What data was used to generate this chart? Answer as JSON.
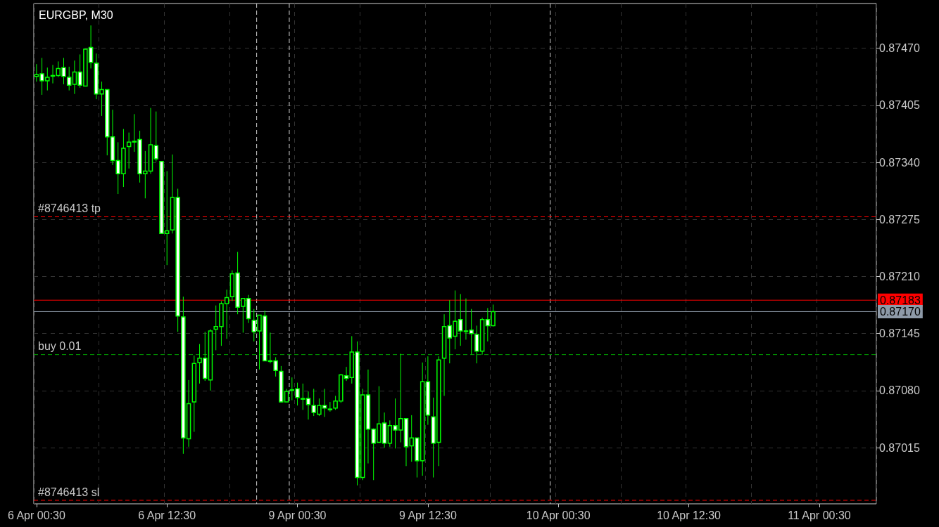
{
  "chart_data": {
    "type": "candlestick",
    "title": "EURGBP, M30",
    "color": "#00ff00",
    "categories": [
      "6 Apr 00:30",
      null,
      null,
      null,
      null,
      null,
      null,
      null,
      null,
      null,
      null,
      null,
      null,
      null,
      null,
      null,
      null,
      null,
      null,
      null,
      null,
      null,
      null,
      null,
      "6 Apr 12:30",
      null,
      null,
      null,
      null,
      null,
      null,
      null,
      null,
      null,
      null,
      null,
      null,
      null,
      null,
      null,
      null,
      null,
      null,
      null,
      null,
      null,
      null,
      null,
      "9 Apr 00:30",
      null,
      null,
      null,
      null,
      null,
      null,
      null,
      null,
      null,
      null,
      null,
      null,
      null,
      null,
      null,
      null,
      null,
      null,
      null,
      null,
      null,
      null,
      null,
      "9 Apr 12:30",
      null,
      null,
      null,
      null,
      null,
      null,
      null,
      null,
      null,
      null,
      null,
      null,
      null,
      null,
      null,
      null,
      null,
      null,
      null,
      null,
      null,
      null,
      null,
      "10 Apr 00:30",
      null,
      null,
      null,
      null,
      null,
      null,
      null,
      null,
      null,
      null,
      null,
      null,
      null,
      null,
      null,
      null,
      null,
      null,
      null,
      null,
      null,
      null,
      null,
      "10 Apr 12:30",
      null,
      null,
      null,
      null,
      null,
      null,
      null,
      null,
      null,
      null,
      null,
      null,
      null,
      null,
      null,
      null,
      null,
      null,
      null,
      null,
      null,
      null,
      null,
      "11 Apr 00:30",
      null,
      null,
      null,
      null,
      null,
      null,
      null,
      null,
      null,
      null
    ],
    "ohlc": [
      [
        0.87438,
        0.87452,
        0.87432,
        0.8744
      ],
      [
        0.87441,
        0.87459,
        0.87417,
        0.87433
      ],
      [
        0.87433,
        0.87448,
        0.87422,
        0.87437
      ],
      [
        0.87439,
        0.87451,
        0.8743,
        0.87439
      ],
      [
        0.87439,
        0.87455,
        0.87437,
        0.87447
      ],
      [
        0.87448,
        0.87459,
        0.87429,
        0.87438
      ],
      [
        0.87437,
        0.87449,
        0.87422,
        0.87428
      ],
      [
        0.87429,
        0.87456,
        0.87418,
        0.87443
      ],
      [
        0.87443,
        0.87463,
        0.87425,
        0.87428
      ],
      [
        0.87427,
        0.87469,
        0.87427,
        0.87469
      ],
      [
        0.87471,
        0.87496,
        0.87447,
        0.87454
      ],
      [
        0.87453,
        0.87464,
        0.87412,
        0.87418
      ],
      [
        0.87418,
        0.87432,
        0.87393,
        0.87423
      ],
      [
        0.87423,
        0.87423,
        0.87348,
        0.87369
      ],
      [
        0.87369,
        0.874,
        0.87337,
        0.87342
      ],
      [
        0.87342,
        0.87363,
        0.87304,
        0.87327
      ],
      [
        0.87327,
        0.87378,
        0.87312,
        0.87356
      ],
      [
        0.87358,
        0.87374,
        0.87333,
        0.87363
      ],
      [
        0.87364,
        0.87395,
        0.87352,
        0.87364
      ],
      [
        0.87366,
        0.87376,
        0.87317,
        0.87327
      ],
      [
        0.87327,
        0.87353,
        0.87299,
        0.8733
      ],
      [
        0.8733,
        0.87402,
        0.87327,
        0.8736
      ],
      [
        0.87359,
        0.87398,
        0.87341,
        0.87344
      ],
      [
        0.87341,
        0.87341,
        0.87259,
        0.87259
      ],
      [
        0.87259,
        0.8733,
        0.87223,
        0.87262
      ],
      [
        0.87263,
        0.87349,
        0.87259,
        0.873
      ],
      [
        0.873,
        0.8731,
        0.87147,
        0.87165
      ],
      [
        0.87164,
        0.87187,
        0.87008,
        0.87026
      ],
      [
        0.87025,
        0.87092,
        0.87016,
        0.87065
      ],
      [
        0.87067,
        0.8712,
        0.87033,
        0.87111
      ],
      [
        0.87112,
        0.87133,
        0.87088,
        0.87117
      ],
      [
        0.87117,
        0.87147,
        0.87091,
        0.87094
      ],
      [
        0.87092,
        0.8715,
        0.8708,
        0.87148
      ],
      [
        0.8715,
        0.87177,
        0.87126,
        0.87153
      ],
      [
        0.87153,
        0.87182,
        0.87131,
        0.87179
      ],
      [
        0.87179,
        0.87195,
        0.87139,
        0.87186
      ],
      [
        0.87187,
        0.87217,
        0.87182,
        0.87213
      ],
      [
        0.87214,
        0.87238,
        0.87167,
        0.87175
      ],
      [
        0.87176,
        0.87185,
        0.87146,
        0.87185
      ],
      [
        0.87185,
        0.87189,
        0.87157,
        0.87162
      ],
      [
        0.8716,
        0.87173,
        0.87136,
        0.87147
      ],
      [
        0.87148,
        0.87166,
        0.87104,
        0.87166
      ],
      [
        0.87165,
        0.87171,
        0.87114,
        0.87114
      ],
      [
        0.87114,
        0.87146,
        0.87111,
        0.87114
      ],
      [
        0.87114,
        0.87118,
        0.87096,
        0.87103
      ],
      [
        0.87102,
        0.87108,
        0.87067,
        0.87067
      ],
      [
        0.87067,
        0.87082,
        0.87067,
        0.87079
      ],
      [
        0.87081,
        0.87095,
        0.87069,
        0.87081
      ],
      [
        0.87082,
        0.87089,
        0.87063,
        0.87072
      ],
      [
        0.87071,
        0.87088,
        0.87058,
        0.87071
      ],
      [
        0.87071,
        0.87079,
        0.87047,
        0.87064
      ],
      [
        0.87063,
        0.87082,
        0.87051,
        0.87055
      ],
      [
        0.87053,
        0.87071,
        0.87051,
        0.87063
      ],
      [
        0.87063,
        0.87082,
        0.8705,
        0.8706
      ],
      [
        0.87059,
        0.87067,
        0.87056,
        0.87059
      ],
      [
        0.8706,
        0.87074,
        0.87058,
        0.87068
      ],
      [
        0.87068,
        0.87099,
        0.87066,
        0.87098
      ],
      [
        0.87097,
        0.87107,
        0.87091,
        0.87094
      ],
      [
        0.87095,
        0.87142,
        0.87088,
        0.87124
      ],
      [
        0.87124,
        0.87136,
        0.86972,
        0.86981
      ],
      [
        0.86981,
        0.87082,
        0.86978,
        0.87075
      ],
      [
        0.87075,
        0.87104,
        0.86997,
        0.87036
      ],
      [
        0.87036,
        0.87037,
        0.86978,
        0.8702
      ],
      [
        0.87021,
        0.87085,
        0.87021,
        0.87042
      ],
      [
        0.87043,
        0.87055,
        0.87015,
        0.8702
      ],
      [
        0.8702,
        0.87046,
        0.87016,
        0.8704
      ],
      [
        0.8704,
        0.87071,
        0.87014,
        0.87035
      ],
      [
        0.87035,
        0.87122,
        0.87021,
        0.87048
      ],
      [
        0.87048,
        0.87048,
        0.86994,
        0.87016
      ],
      [
        0.87017,
        0.87052,
        0.86999,
        0.87026
      ],
      [
        0.87026,
        0.87026,
        0.86981,
        0.87
      ],
      [
        0.87,
        0.87112,
        0.86983,
        0.8709
      ],
      [
        0.8709,
        0.87119,
        0.87041,
        0.87052
      ],
      [
        0.8705,
        0.87072,
        0.86981,
        0.8702
      ],
      [
        0.87021,
        0.87119,
        0.86994,
        0.87115
      ],
      [
        0.87117,
        0.87167,
        0.87074,
        0.87153
      ],
      [
        0.87154,
        0.87183,
        0.87111,
        0.8714
      ],
      [
        0.87142,
        0.87194,
        0.87127,
        0.87159
      ],
      [
        0.87161,
        0.8719,
        0.87131,
        0.87148
      ],
      [
        0.87148,
        0.87185,
        0.87138,
        0.87148
      ],
      [
        0.87149,
        0.87173,
        0.87121,
        0.87145
      ],
      [
        0.87144,
        0.87154,
        0.87111,
        0.87125
      ],
      [
        0.87125,
        0.87163,
        0.87121,
        0.87161
      ],
      [
        0.87161,
        0.87174,
        0.87136,
        0.87154
      ],
      [
        0.87154,
        0.87178,
        0.87153,
        0.8717
      ],
      null,
      null,
      null,
      null,
      null,
      null,
      null,
      null,
      null,
      null,
      null,
      null,
      null,
      null,
      null,
      null,
      null,
      null,
      null,
      null,
      null,
      null,
      null,
      null,
      null,
      null,
      null,
      null,
      null,
      null,
      null,
      null,
      null,
      null,
      null,
      null,
      null,
      null,
      null,
      null,
      null,
      null,
      null,
      null,
      null,
      null,
      null,
      null,
      null,
      null,
      null,
      null,
      null,
      null,
      null,
      null,
      null,
      null,
      null,
      null,
      null,
      null,
      null,
      null,
      null,
      null,
      null,
      null,
      null,
      null
    ],
    "ylim": [
      0.86951,
      0.87521
    ],
    "yticks": [
      0.87015,
      {
        "value": 0.8708,
        "label": "0.87080"
      },
      0.87145,
      {
        "value": 0.8721,
        "label": "0.87210"
      },
      0.87275,
      {
        "value": 0.8734,
        "label": "0.87340"
      },
      0.87405,
      {
        "value": 0.8747,
        "label": "0.87470"
      }
    ],
    "grid": true,
    "ref_lines": [
      {
        "axis": "y",
        "value": 0.87183,
        "label": "0.87183",
        "color": "#ff0000",
        "line_style": "solid"
      },
      {
        "axis": "y",
        "value": 0.8717,
        "label": "0.87170",
        "color": "#8e9aa8",
        "line_style": "solid"
      },
      {
        "axis": "y",
        "value": 0.87278,
        "label": "#8746413 tp",
        "color": "#ff0000",
        "line_style": "dashed"
      },
      {
        "axis": "y",
        "value": 0.87121,
        "label": "buy 0.01",
        "color": "#00a000",
        "line_style": "dashed"
      },
      {
        "axis": "y",
        "value": 0.86955,
        "label": "#8746413 sl",
        "color": "#ff0000",
        "line_style": "dashed"
      }
    ]
  }
}
